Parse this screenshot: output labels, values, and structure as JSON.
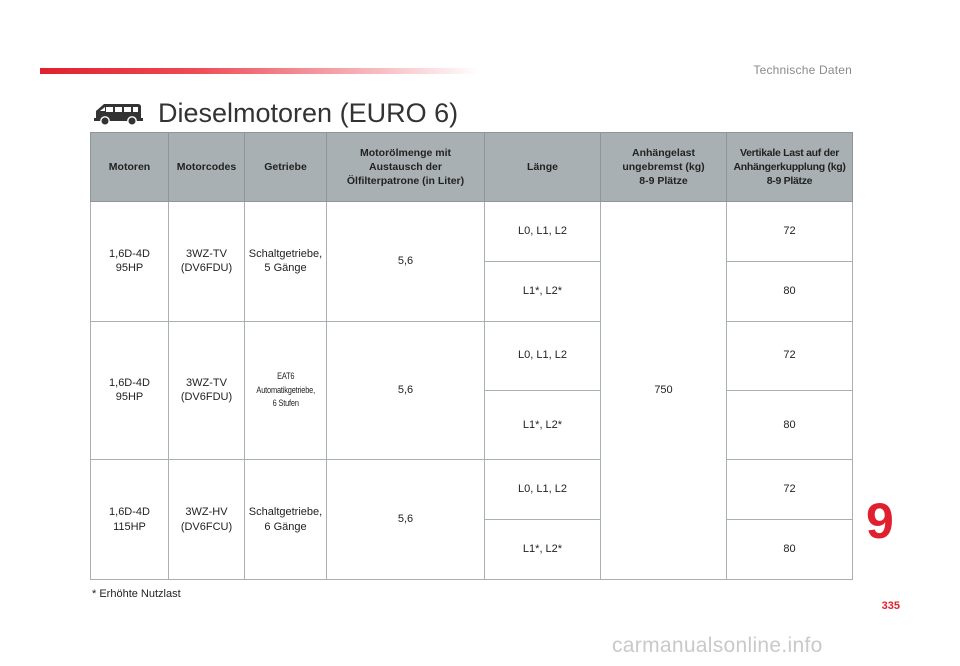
{
  "section_label": "Technische Daten",
  "title": "Dieselmotoren (EURO 6)",
  "icons": {
    "title_icon": "van-icon"
  },
  "colors": {
    "accent": "#e0202e",
    "header_bg": "#a9b0b3"
  },
  "table": {
    "headers": {
      "motoren": "Motoren",
      "motorcodes": "Motorcodes",
      "getriebe": "Getriebe",
      "oel_1": "Motorölmenge mit",
      "oel_2": "Austausch der",
      "oel_3": "Ölfilterpatrone (in Liter)",
      "laenge": "Länge",
      "anh_1": "Anhängelast",
      "anh_2": "ungebremst (kg)",
      "anh_3": "8-9 Plätze",
      "vert_1": "Vertikale Last auf der",
      "vert_2": "Anhängerkupplung (kg)",
      "vert_3": "8-9 Plätze"
    },
    "anhaengelast": "750",
    "groups": [
      {
        "motor_1": "1,6D-4D",
        "motor_2": "95HP",
        "code_1": "3WZ-TV",
        "code_2": "(DV6FDU)",
        "getriebe_1": "Schaltgetriebe,",
        "getriebe_2": "5 Gänge",
        "oel": "5,6",
        "rows": [
          {
            "laenge": "L0, L1, L2",
            "vertikal": "72"
          },
          {
            "laenge": "L1*, L2*",
            "vertikal": "80"
          }
        ]
      },
      {
        "motor_1": "1,6D-4D",
        "motor_2": "95HP",
        "code_1": "3WZ-TV",
        "code_2": "(DV6FDU)",
        "getriebe_1": "EAT6",
        "getriebe_2": "Automatikgetriebe,",
        "getriebe_3": "6 Stufen",
        "oel": "5,6",
        "rows": [
          {
            "laenge": "L0, L1, L2",
            "vertikal": "72"
          },
          {
            "laenge": "L1*, L2*",
            "vertikal": "80"
          }
        ]
      },
      {
        "motor_1": "1,6D-4D",
        "motor_2": "115HP",
        "code_1": "3WZ-HV",
        "code_2": "(DV6FCU)",
        "getriebe_1": "Schaltgetriebe,",
        "getriebe_2": "6 Gänge",
        "oel": "5,6",
        "rows": [
          {
            "laenge": "L0, L1, L2",
            "vertikal": "72"
          },
          {
            "laenge": "L1*, L2*",
            "vertikal": "80"
          }
        ]
      }
    ]
  },
  "footnote": "* Erhöhte Nutzlast",
  "chapter_number": "9",
  "page_number": "335",
  "watermark": "carmanualsonline.info"
}
